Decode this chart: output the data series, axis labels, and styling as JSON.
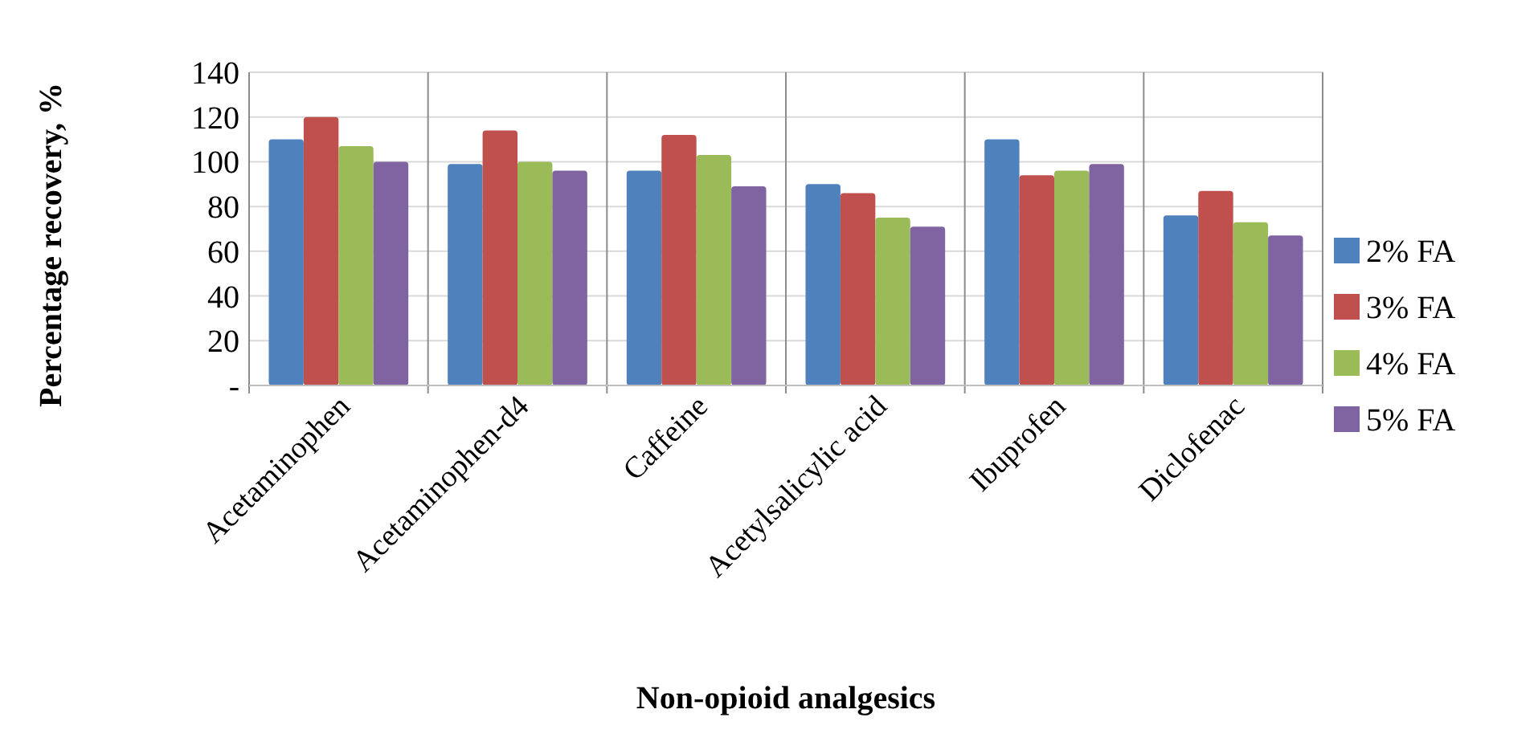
{
  "chart_data": {
    "type": "bar",
    "xlabel": "Non-opioid analgesics",
    "ylabel": "Percentage recovery, %",
    "categories": [
      "Acetaminophen",
      "Acetaminophen-d4",
      "Caffeine",
      "Acetylsalicylic acid",
      "Ibuprofen",
      "Diclofenac"
    ],
    "series": [
      {
        "name": "2% FA",
        "color": "#4f81bd",
        "values": [
          110,
          99,
          96,
          90,
          110,
          76
        ]
      },
      {
        "name": "3% FA",
        "color": "#c0504d",
        "values": [
          120,
          114,
          112,
          86,
          94,
          87
        ]
      },
      {
        "name": "4% FA",
        "color": "#9bbb59",
        "values": [
          107,
          100,
          103,
          75,
          96,
          73
        ]
      },
      {
        "name": "5% FA",
        "color": "#8064a2",
        "values": [
          100,
          96,
          89,
          71,
          99,
          67
        ]
      }
    ],
    "ylim": [
      0,
      140
    ],
    "yticks": [
      {
        "value": 0,
        "label": "-"
      },
      20,
      40,
      60,
      80,
      100,
      120,
      140
    ],
    "grid": true,
    "legend": "right"
  }
}
